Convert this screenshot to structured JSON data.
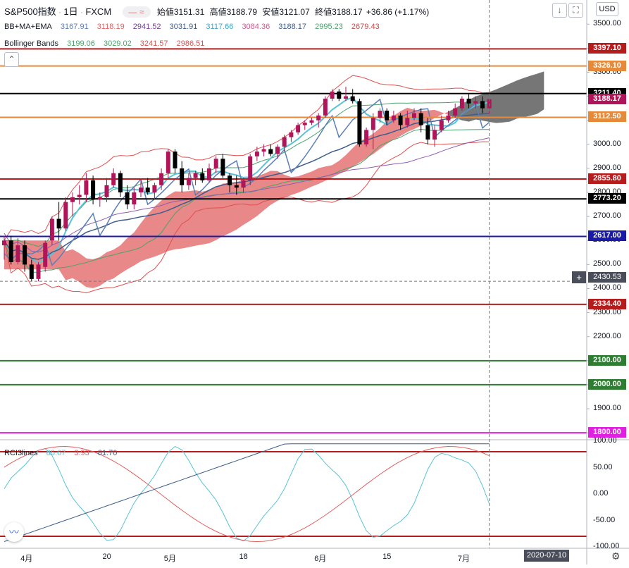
{
  "header": {
    "symbol": "S&P500指数",
    "interval": "1日",
    "source": "FXCM",
    "open_label": "始値",
    "open": "3151.31",
    "high_label": "高値",
    "high": "3188.79",
    "low_label": "安値",
    "low": "3121.07",
    "close_label": "終値",
    "close": "3188.17",
    "change": "+36.86 (+1.17%)"
  },
  "indicators": {
    "bbmaema_label": "BB+MA+EMA",
    "bbmaema_values": [
      "3167.91",
      "3118.19",
      "2941.52",
      "3031.91",
      "3117.66",
      "3084.36",
      "3188.17",
      "2995.23",
      "2679.43"
    ],
    "bollinger_label": "Bollinger Bands",
    "bollinger_values": [
      "3199.06",
      "3029.02",
      "3241.57",
      "2986.51"
    ],
    "rci_label": "RCI3lines",
    "rci_values": [
      "86.67",
      "3.93",
      "81.70"
    ]
  },
  "currency": "USD",
  "colors": {
    "up": "#b0155a",
    "down": "#000000",
    "cloud_bear": "#5e5e5e",
    "cloud_bull": "#e57373"
  },
  "chart_data": {
    "type": "candlestick",
    "price_axis": {
      "ylim": [
        1777,
        3536
      ],
      "ticks": [
        "3500.00",
        "3400.00",
        "3300.00",
        "3200.00",
        "3100.00",
        "3000.00",
        "2900.00",
        "2800.00",
        "2700.00",
        "2600.00",
        "2500.00",
        "2400.00",
        "2300.00",
        "2200.00",
        "2100.00",
        "2000.00",
        "1900.00",
        "1800.00"
      ]
    },
    "x_labels": [
      "4月",
      "20",
      "5月",
      "18",
      "6月",
      "15",
      "7月"
    ],
    "crosshair_date": "2020-07-10",
    "crosshair_price": "2430.53",
    "horizontal_lines": [
      {
        "price": 3397.1,
        "label": "3397.10",
        "color": "#b71c1c"
      },
      {
        "price": 3326.1,
        "label": "3326.10",
        "color": "#e58a3a"
      },
      {
        "price": 3211.4,
        "label": "3211.40",
        "color": "#000000"
      },
      {
        "price": 3112.5,
        "label": "3112.50",
        "color": "#e58a3a"
      },
      {
        "price": 2855.8,
        "label": "2855.80",
        "color": "#b71c1c"
      },
      {
        "price": 2773.2,
        "label": "2773.20",
        "color": "#000000"
      },
      {
        "price": 2617.0,
        "label": "2617.00",
        "color": "#1a1aa8"
      },
      {
        "price": 2334.4,
        "label": "2334.40",
        "color": "#b71c1c"
      },
      {
        "price": 2100.0,
        "label": "2100.00",
        "color": "#2e7d32"
      },
      {
        "price": 2000.0,
        "label": "2000.00",
        "color": "#2e7d32"
      },
      {
        "price": 1800.0,
        "label": "1800.00",
        "color": "#e020e0"
      }
    ],
    "last_price": {
      "price": 3188.17,
      "label": "3188.17",
      "color": "#b0155a"
    },
    "candles": [
      [
        2580,
        2620,
        2520,
        2600
      ],
      [
        2600,
        2620,
        2500,
        2510
      ],
      [
        2510,
        2610,
        2500,
        2580
      ],
      [
        2580,
        2600,
        2470,
        2500
      ],
      [
        2500,
        2520,
        2430,
        2440
      ],
      [
        2440,
        2510,
        2430,
        2500
      ],
      [
        2490,
        2600,
        2470,
        2590
      ],
      [
        2600,
        2700,
        2580,
        2690
      ],
      [
        2690,
        2760,
        2600,
        2650
      ],
      [
        2650,
        2780,
        2640,
        2760
      ],
      [
        2760,
        2800,
        2700,
        2780
      ],
      [
        2780,
        2830,
        2750,
        2790
      ],
      [
        2790,
        2880,
        2760,
        2850
      ],
      [
        2850,
        2870,
        2750,
        2770
      ],
      [
        2770,
        2800,
        2740,
        2780
      ],
      [
        2780,
        2860,
        2760,
        2830
      ],
      [
        2830,
        2900,
        2820,
        2880
      ],
      [
        2880,
        2890,
        2780,
        2800
      ],
      [
        2800,
        2830,
        2730,
        2750
      ],
      [
        2750,
        2820,
        2730,
        2800
      ],
      [
        2800,
        2850,
        2780,
        2820
      ],
      [
        2820,
        2860,
        2790,
        2800
      ],
      [
        2800,
        2840,
        2770,
        2830
      ],
      [
        2830,
        2900,
        2810,
        2880
      ],
      [
        2880,
        2980,
        2860,
        2970
      ],
      [
        2970,
        2980,
        2880,
        2900
      ],
      [
        2900,
        2930,
        2800,
        2830
      ],
      [
        2830,
        2880,
        2810,
        2860
      ],
      [
        2860,
        2890,
        2830,
        2880
      ],
      [
        2880,
        2900,
        2840,
        2850
      ],
      [
        2850,
        2920,
        2840,
        2900
      ],
      [
        2900,
        2950,
        2880,
        2940
      ],
      [
        2940,
        2960,
        2860,
        2870
      ],
      [
        2870,
        2880,
        2800,
        2830
      ],
      [
        2830,
        2870,
        2790,
        2820
      ],
      [
        2820,
        2860,
        2800,
        2850
      ],
      [
        2850,
        2960,
        2830,
        2950
      ],
      [
        2950,
        2990,
        2930,
        2970
      ],
      [
        2970,
        3000,
        2950,
        2980
      ],
      [
        2980,
        3000,
        2950,
        2960
      ],
      [
        2960,
        3000,
        2940,
        2990
      ],
      [
        2990,
        3040,
        2970,
        3030
      ],
      [
        3030,
        3060,
        3010,
        3050
      ],
      [
        3050,
        3090,
        3040,
        3080
      ],
      [
        3080,
        3100,
        3060,
        3090
      ],
      [
        3090,
        3110,
        3080,
        3100
      ],
      [
        3100,
        3130,
        3070,
        3120
      ],
      [
        3120,
        3200,
        3110,
        3190
      ],
      [
        3190,
        3230,
        3180,
        3220
      ],
      [
        3220,
        3230,
        3180,
        3190
      ],
      [
        3190,
        3240,
        3180,
        3200
      ],
      [
        3200,
        3230,
        3170,
        3180
      ],
      [
        3180,
        3190,
        2990,
        3000
      ],
      [
        3000,
        3070,
        2990,
        3060
      ],
      [
        3060,
        3130,
        2980,
        3110
      ],
      [
        3110,
        3150,
        3090,
        3140
      ],
      [
        3140,
        3150,
        3080,
        3100
      ],
      [
        3100,
        3140,
        3090,
        3120
      ],
      [
        3120,
        3130,
        3060,
        3080
      ],
      [
        3080,
        3140,
        3070,
        3110
      ],
      [
        3110,
        3150,
        3100,
        3130
      ],
      [
        3130,
        3150,
        3050,
        3080
      ],
      [
        3080,
        3110,
        3000,
        3020
      ],
      [
        3020,
        3080,
        2990,
        3060
      ],
      [
        3060,
        3120,
        3050,
        3100
      ],
      [
        3100,
        3140,
        3090,
        3120
      ],
      [
        3120,
        3170,
        3110,
        3150
      ],
      [
        3150,
        3200,
        3140,
        3190
      ],
      [
        3190,
        3210,
        3150,
        3170
      ],
      [
        3170,
        3200,
        3150,
        3180
      ],
      [
        3180,
        3200,
        3130,
        3150
      ],
      [
        3150,
        3190,
        3120,
        3188
      ]
    ],
    "rci_axis": {
      "ylim": [
        -100,
        100
      ],
      "ticks": [
        "100.00",
        "50.00",
        "0.00",
        "-50.00",
        "-100.00"
      ]
    },
    "rci_levels": [
      80,
      -80
    ]
  }
}
